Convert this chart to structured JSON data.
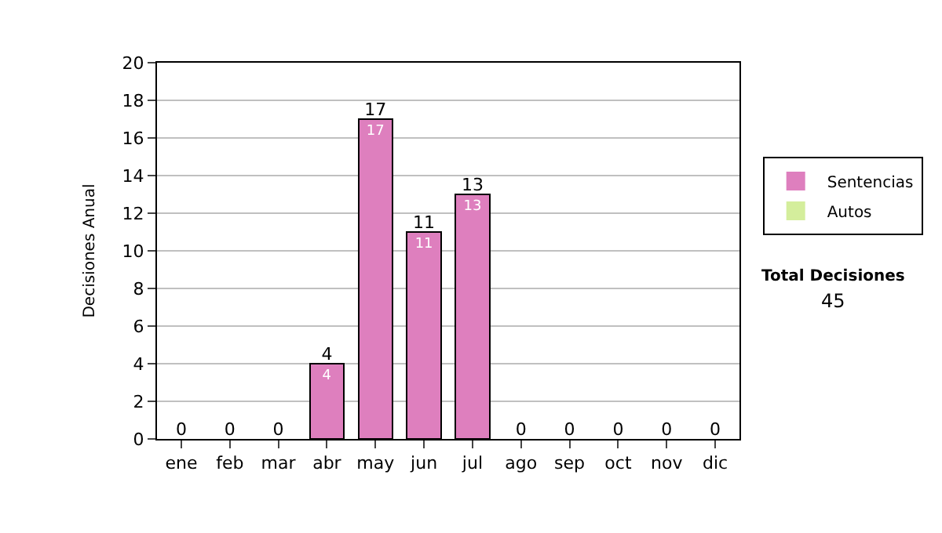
{
  "chart_data": {
    "type": "bar",
    "stacked": true,
    "ylabel": "Decisiones Anual",
    "categories": [
      "ene",
      "feb",
      "mar",
      "abr",
      "may",
      "jun",
      "jul",
      "ago",
      "sep",
      "oct",
      "nov",
      "dic"
    ],
    "series": [
      {
        "name": "Sentencias",
        "color": "#de7fbe",
        "values": [
          0,
          0,
          0,
          4,
          17,
          11,
          13,
          0,
          0,
          0,
          0,
          0
        ],
        "value_labels": [
          null,
          null,
          null,
          "4",
          "17",
          "11",
          "13",
          null,
          null,
          null,
          null,
          null
        ]
      },
      {
        "name": "Autos",
        "color": "#d4ee9c",
        "values": [
          0,
          0,
          0,
          0,
          0,
          0,
          0,
          0,
          0,
          0,
          0,
          0
        ]
      }
    ],
    "totals": [
      "0",
      "0",
      "0",
      "4",
      "17",
      "11",
      "13",
      "0",
      "0",
      "0",
      "0",
      "0"
    ],
    "ylim": [
      0,
      20
    ],
    "yticks": [
      0,
      2,
      4,
      6,
      8,
      10,
      12,
      14,
      16,
      18,
      20
    ],
    "grid": "y",
    "legend": "right",
    "annotations": [
      "Total Decisiones",
      "45"
    ]
  }
}
